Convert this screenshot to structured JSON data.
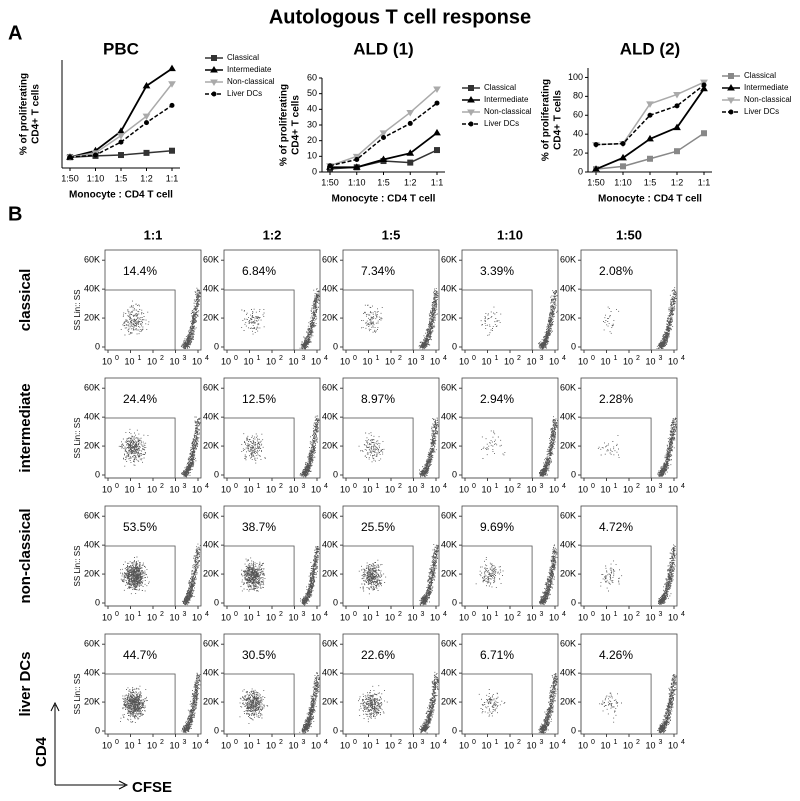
{
  "figure_title": "Autologous T cell response",
  "panel_a": {
    "label": "A"
  },
  "chart_data": [
    {
      "type": "line",
      "title": "PBC",
      "ylabel_lines": [
        "% of proliferating",
        "CD4+ T cells"
      ],
      "xlabel": "Monocyte : CD4 T cell",
      "categories": [
        "1:50",
        "1:10",
        "1:5",
        "1:2",
        "1:1"
      ],
      "ylim": [
        0,
        25
      ],
      "yticks": [],
      "series": [
        {
          "name": "Classical",
          "color": "#333333",
          "marker": "square",
          "dash": false,
          "values": [
            2.5,
            2.8,
            3,
            3.5,
            4
          ]
        },
        {
          "name": "Intermediate",
          "color": "#000000",
          "marker": "triangle-up",
          "dash": false,
          "values": [
            2.5,
            4,
            8.5,
            19,
            23
          ]
        },
        {
          "name": "Non-classical",
          "color": "#aaaaaa",
          "marker": "triangle-down",
          "dash": false,
          "values": [
            2.5,
            3.5,
            7.5,
            12,
            19.5
          ]
        },
        {
          "name": "Liver DCs",
          "color": "#000000",
          "marker": "circle",
          "dash": true,
          "values": [
            2.5,
            3,
            6,
            10.5,
            14.5
          ]
        }
      ]
    },
    {
      "type": "line",
      "title": "ALD (1)",
      "ylabel_lines": [
        "% of proliferating",
        "CD4+ T cells"
      ],
      "xlabel": "Monocyte : CD4 T cell",
      "categories": [
        "1:50",
        "1:10",
        "1:5",
        "1:2",
        "1:1"
      ],
      "ylim": [
        0,
        60
      ],
      "yticks": [
        0,
        10,
        20,
        30,
        40,
        50,
        60
      ],
      "series": [
        {
          "name": "Classical",
          "color": "#333333",
          "marker": "square",
          "dash": false,
          "values": [
            2,
            3,
            7,
            6,
            14
          ]
        },
        {
          "name": "Intermediate",
          "color": "#000000",
          "marker": "triangle-up",
          "dash": false,
          "values": [
            3,
            3,
            8,
            12,
            25
          ]
        },
        {
          "name": "Non-classical",
          "color": "#aaaaaa",
          "marker": "triangle-down",
          "dash": false,
          "values": [
            4,
            10,
            25,
            38,
            53
          ]
        },
        {
          "name": "Liver DCs",
          "color": "#000000",
          "marker": "circle",
          "dash": true,
          "values": [
            4,
            8,
            22,
            31,
            44
          ]
        }
      ]
    },
    {
      "type": "line",
      "title": "ALD (2)",
      "ylabel_lines": [
        "% of proliferating",
        "CD4+ T cells"
      ],
      "xlabel": "Monocyte : CD4 T cell",
      "categories": [
        "1:50",
        "1:10",
        "1:5",
        "1:2",
        "1:1"
      ],
      "ylim": [
        0,
        110
      ],
      "yticks": [
        0,
        20,
        40,
        60,
        80,
        100
      ],
      "series": [
        {
          "name": "Classical",
          "color": "#888888",
          "marker": "square",
          "dash": false,
          "values": [
            3,
            6,
            14,
            22,
            41
          ]
        },
        {
          "name": "Intermediate",
          "color": "#000000",
          "marker": "triangle-up",
          "dash": false,
          "values": [
            3,
            15,
            35,
            47,
            88
          ]
        },
        {
          "name": "Non-classical",
          "color": "#aaaaaa",
          "marker": "triangle-down",
          "dash": false,
          "values": [
            29,
            30,
            72,
            82,
            95
          ]
        },
        {
          "name": "Liver DCs",
          "color": "#000000",
          "marker": "circle",
          "dash": true,
          "values": [
            29,
            30,
            60,
            70,
            92
          ]
        }
      ]
    }
  ],
  "panel_b": {
    "label": "B",
    "columns": [
      "1:1",
      "1:2",
      "1:5",
      "1:10",
      "1:50"
    ],
    "rows": [
      {
        "name": "classical",
        "percentages": [
          "14.4%",
          "6.84%",
          "7.34%",
          "3.39%",
          "2.08%"
        ]
      },
      {
        "name": "intermediate",
        "percentages": [
          "24.4%",
          "12.5%",
          "8.97%",
          "2.94%",
          "2.28%"
        ]
      },
      {
        "name": "non-classical",
        "percentages": [
          "53.5%",
          "38.7%",
          "25.5%",
          "9.69%",
          "4.72%"
        ]
      },
      {
        "name": "liver DCs",
        "percentages": [
          "44.7%",
          "30.5%",
          "22.6%",
          "6.71%",
          "4.26%"
        ]
      }
    ],
    "plot_ylabel": "SS Lin:: SS",
    "ylim": [
      0,
      65000
    ],
    "yticks": [
      0,
      {
        "value": 20000,
        "label": "20K"
      },
      {
        "value": 40000,
        "label": "40K"
      },
      {
        "value": 60000,
        "label": "60K"
      }
    ],
    "xtick_base": "10",
    "xtick_exponents": [
      0,
      1,
      2,
      3,
      4
    ],
    "axis_y": "CD4",
    "axis_x": "CFSE"
  }
}
